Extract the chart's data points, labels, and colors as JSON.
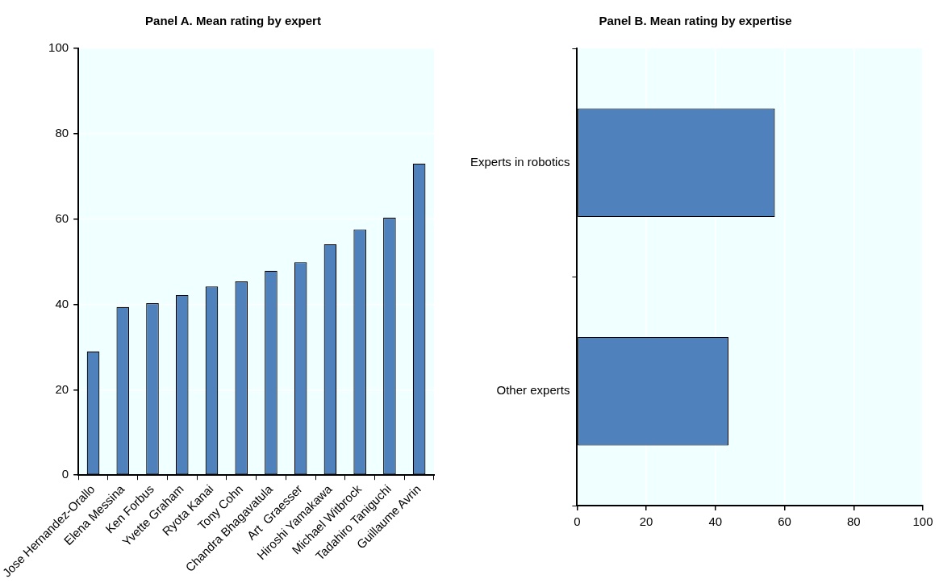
{
  "chart_data": [
    {
      "type": "bar",
      "title": "Panel A. Mean rating by expert",
      "categories": [
        "Jose Hernandez-Orallo",
        "Elena Messina",
        "Ken Forbus",
        "Yvette Graham",
        "Ryota Kanai",
        "Tony Cohn",
        "Chandra Bhagavatula",
        "Art  Graesser",
        "Hiroshi Yamakawa",
        "Michael Witbrock",
        "Tadahiro Taniguchi",
        "Guillaume Avrin"
      ],
      "values": [
        29.0,
        39.4,
        40.3,
        42.2,
        44.2,
        45.4,
        47.9,
        49.9,
        54.1,
        57.6,
        60.3,
        73.0
      ],
      "color": "#4f81bd",
      "ylim": [
        0,
        100
      ],
      "yticks": [
        0,
        20,
        40,
        60,
        80,
        100
      ],
      "grid": "y"
    },
    {
      "type": "bar",
      "title": "Panel B. Mean rating by expertise",
      "orientation": "horizontal",
      "categories": [
        "Experts in robotics",
        "Other experts"
      ],
      "values": [
        57.2,
        43.8
      ],
      "color": "#4f81bd",
      "xlim": [
        0,
        100
      ],
      "xticks": [
        0,
        20,
        40,
        60,
        80,
        100
      ],
      "grid": "x"
    }
  ]
}
